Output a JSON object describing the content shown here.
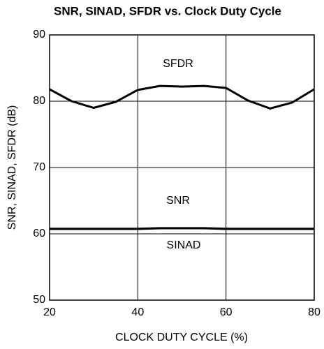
{
  "chart_data": {
    "type": "line",
    "title": "SNR, SINAD, SFDR vs. Clock Duty Cycle",
    "xlabel": "CLOCK DUTY CYCLE (%)",
    "ylabel": "SNR, SINAD, SFDR (dB)",
    "x": [
      20,
      25,
      30,
      35,
      40,
      45,
      50,
      55,
      60,
      65,
      70,
      75,
      80
    ],
    "series": [
      {
        "name": "SFDR",
        "color": "#000000",
        "values": [
          81.8,
          80.0,
          79.0,
          79.9,
          81.7,
          82.3,
          82.2,
          82.3,
          82.0,
          80.1,
          78.9,
          79.8,
          81.8
        ]
      },
      {
        "name": "SNR",
        "color": "#000000",
        "values": [
          60.8,
          60.8,
          60.8,
          60.8,
          60.8,
          60.9,
          60.9,
          60.9,
          60.8,
          60.8,
          60.8,
          60.8,
          60.8
        ]
      },
      {
        "name": "SINAD",
        "color": "#000000",
        "values": [
          60.7,
          60.7,
          60.7,
          60.7,
          60.7,
          60.8,
          60.8,
          60.8,
          60.7,
          60.7,
          60.7,
          60.7,
          60.7
        ]
      }
    ],
    "annotations": [
      "SFDR",
      "SNR",
      "SINAD"
    ],
    "xlim": [
      20,
      80
    ],
    "xticks": [
      20,
      40,
      60,
      80
    ],
    "ylim": [
      50,
      90
    ],
    "yticks": [
      50,
      60,
      70,
      80,
      90
    ],
    "grid": true
  }
}
